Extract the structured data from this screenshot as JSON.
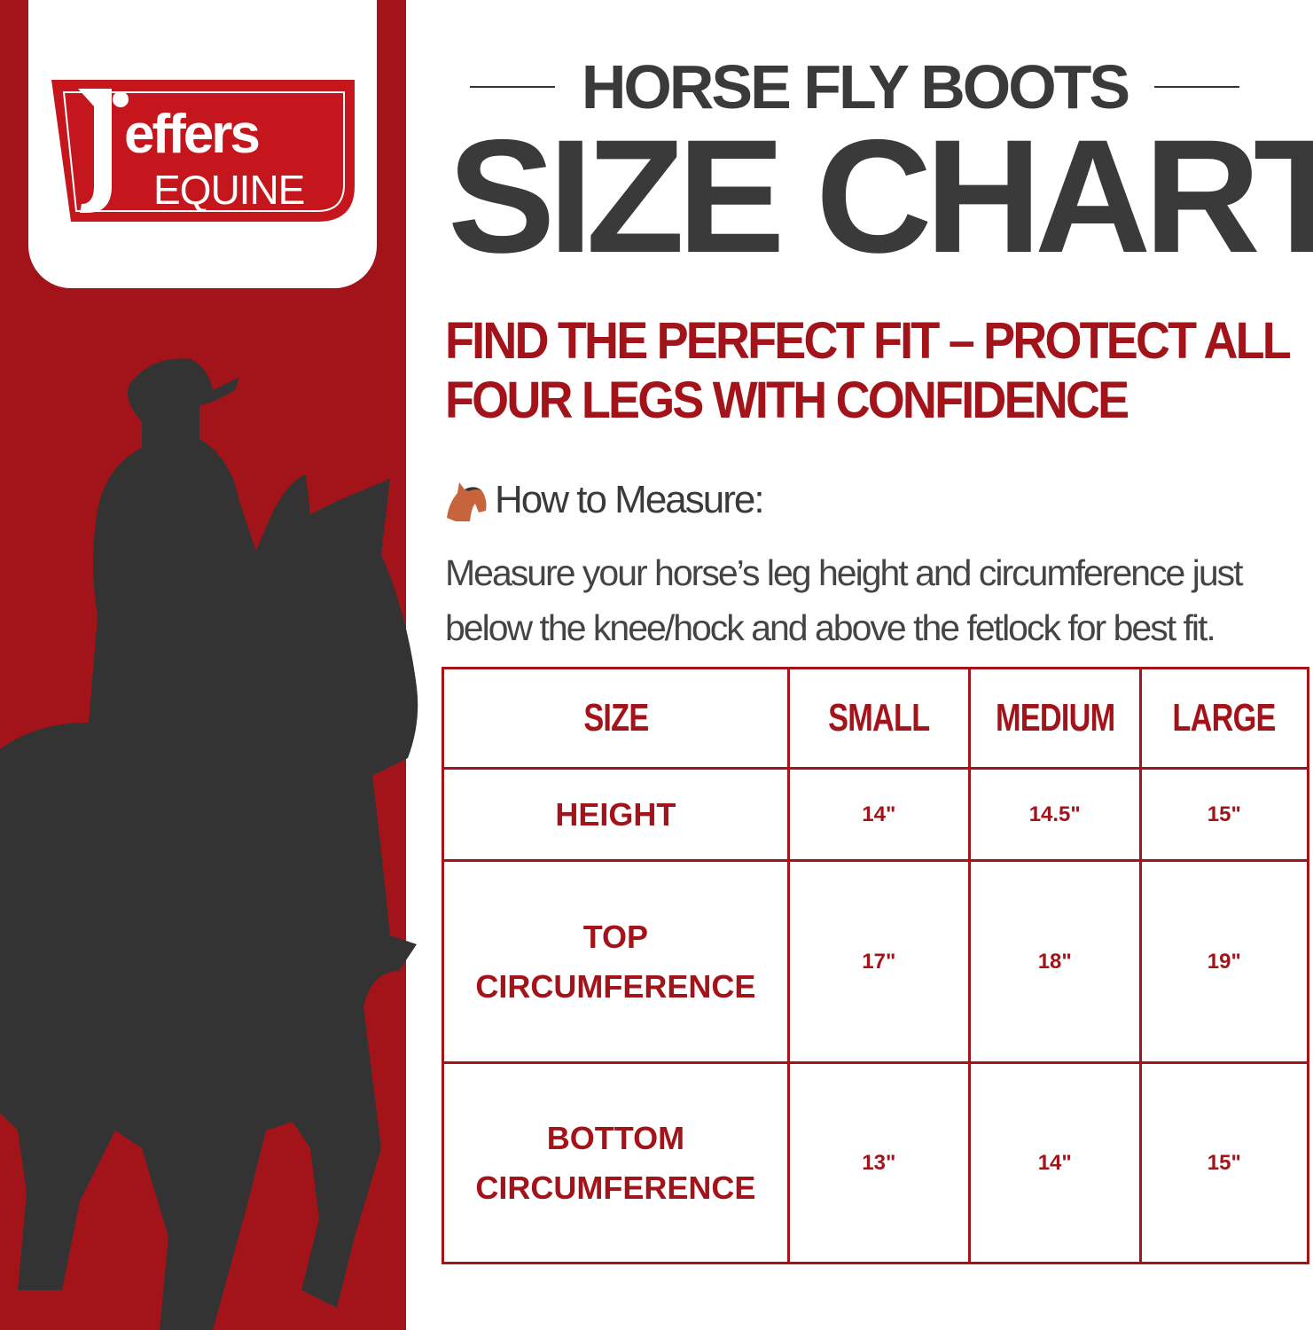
{
  "brand": {
    "logo_text_top": "jeffers",
    "logo_text_bottom": "EQUINE",
    "logo_color": "#c4161c"
  },
  "colors": {
    "accent": "#a3141a",
    "dark": "#3a3a3a",
    "silhouette": "#333333"
  },
  "header": {
    "subtitle": "HORSE FLY BOOTS",
    "title": "SIZE CHART"
  },
  "tagline": {
    "line1": "FIND THE PERFECT FIT – PROTECT ALL",
    "line2": "FOUR LEGS WITH CONFIDENCE"
  },
  "measure": {
    "icon": "horse-head-icon",
    "heading": "How to Measure:",
    "text_line1": "Measure your horse’s leg height and circumference just",
    "text_line2": "below the knee/hock and above the fetlock for best fit."
  },
  "table": {
    "headers": [
      "SIZE",
      "SMALL",
      "MEDIUM",
      "LARGE"
    ],
    "rows": [
      {
        "label1": "HEIGHT",
        "label2": "",
        "values": [
          "14\"",
          "14.5\"",
          "15\""
        ]
      },
      {
        "label1": "TOP",
        "label2": "CIRCUMFERENCE",
        "values": [
          "17\"",
          "18\"",
          "19\""
        ]
      },
      {
        "label1": "BOTTOM",
        "label2": "CIRCUMFERENCE",
        "values": [
          "13\"",
          "14\"",
          "15\""
        ]
      }
    ]
  }
}
